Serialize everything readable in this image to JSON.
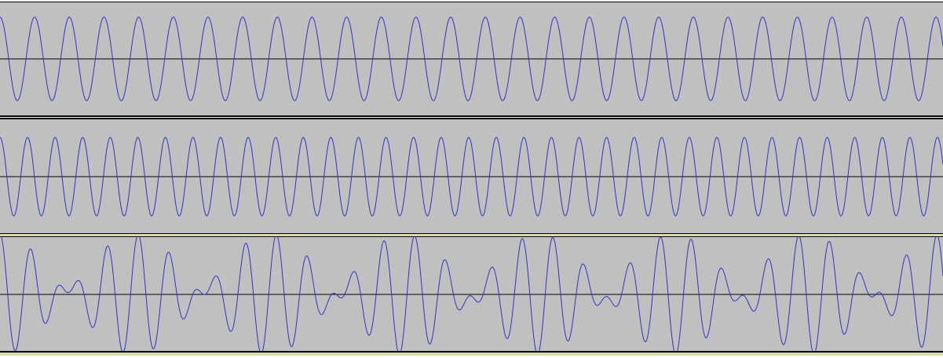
{
  "editor": {
    "app": "audio-waveform-editor",
    "colors": {
      "background": "#c0c0c0",
      "waveform": "#3232c8",
      "zero_line": "#000000",
      "separator": "#000000",
      "selected_track_border": "#d8d8a8"
    }
  },
  "tracks": [
    {
      "id": "track-1",
      "label": "",
      "signal": "sine",
      "cycles_visible": 27.2,
      "amplitude": 0.75,
      "phase": 0.25,
      "selected": false
    },
    {
      "id": "track-2",
      "label": "",
      "signal": "sine",
      "cycles_visible": 34.2,
      "amplitude": 0.7,
      "phase": 0.25,
      "selected": false
    },
    {
      "id": "track-3",
      "label": "",
      "signal": "sum",
      "components": [
        {
          "cycles_visible": 27.2,
          "amplitude": 0.75,
          "phase": 0.25
        },
        {
          "cycles_visible": 34.2,
          "amplitude": 0.7,
          "phase": 0.25
        }
      ],
      "selected": true
    }
  ]
}
